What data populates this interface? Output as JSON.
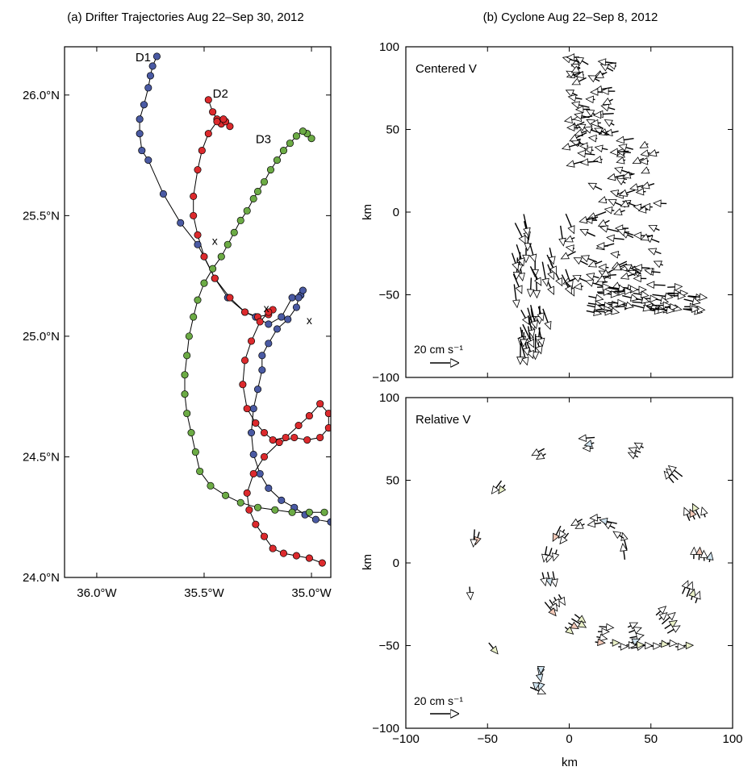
{
  "chart_data": [
    {
      "panel": "a",
      "type": "scatter",
      "title": "(a) Drifter Trajectories Aug 22–Sep 30, 2012",
      "xlabel": "",
      "ylabel": "",
      "xlim": [
        -36.15,
        -34.91
      ],
      "ylim": [
        24.0,
        26.2
      ],
      "xticks": [
        -36.0,
        -35.5,
        -35.0
      ],
      "xtick_labels": [
        "36.0°W",
        "35.5°W",
        "35.0°W"
      ],
      "yticks": [
        24.0,
        24.5,
        25.0,
        25.5,
        26.0
      ],
      "ytick_labels": [
        "24.0°N",
        "24.5°N",
        "25.0°N",
        "25.5°N",
        "26.0°N"
      ],
      "grid": false,
      "series": [
        {
          "name": "D1",
          "color": "#4a5aa3",
          "x": [
            -35.72,
            -35.74,
            -35.75,
            -35.76,
            -35.78,
            -35.8,
            -35.8,
            -35.79,
            -35.76,
            -35.69,
            -35.61,
            -35.53,
            -35.45,
            -35.39,
            -35.31,
            -35.26,
            -35.2,
            -35.14,
            -35.09,
            -35.05,
            -35.04,
            -35.06,
            -35.07,
            -35.11,
            -35.16,
            -35.2,
            -35.23,
            -35.23,
            -35.25,
            -35.27,
            -35.28,
            -35.27,
            -35.24,
            -35.2,
            -35.14,
            -35.08,
            -35.03,
            -34.98,
            -34.91
          ],
          "y": [
            26.16,
            26.12,
            26.08,
            26.03,
            25.96,
            25.9,
            25.84,
            25.77,
            25.73,
            25.59,
            25.47,
            25.38,
            25.24,
            25.16,
            25.1,
            25.08,
            25.05,
            25.08,
            25.16,
            25.17,
            25.19,
            25.16,
            25.12,
            25.07,
            25.03,
            24.97,
            24.92,
            24.86,
            24.78,
            24.7,
            24.6,
            24.51,
            24.43,
            24.37,
            24.32,
            24.29,
            24.26,
            24.24,
            24.23
          ]
        },
        {
          "name": "D2",
          "color": "#dc2a2d",
          "x": [
            -35.48,
            -35.46,
            -35.44,
            -35.42,
            -35.4,
            -35.38,
            -35.41,
            -35.44,
            -35.48,
            -35.51,
            -35.53,
            -35.55,
            -35.55,
            -35.53,
            -35.5,
            -35.45,
            -35.38,
            -35.31,
            -35.25,
            -35.2,
            -35.18,
            -35.2,
            -35.24,
            -35.28,
            -35.31,
            -35.32,
            -35.3,
            -35.26,
            -35.22,
            -35.18,
            -35.12,
            -35.06,
            -35.01,
            -34.96,
            -34.92,
            -34.92,
            -34.96,
            -35.02,
            -35.08,
            -35.15,
            -35.22,
            -35.27,
            -35.3,
            -35.29,
            -35.26,
            -35.22,
            -35.18,
            -35.13,
            -35.07,
            -35.01,
            -34.95
          ],
          "y": [
            25.98,
            25.93,
            25.9,
            25.88,
            25.89,
            25.87,
            25.9,
            25.89,
            25.84,
            25.77,
            25.69,
            25.58,
            25.5,
            25.42,
            25.33,
            25.24,
            25.16,
            25.1,
            25.08,
            25.09,
            25.11,
            25.1,
            25.06,
            24.98,
            24.9,
            24.8,
            24.7,
            24.64,
            24.6,
            24.57,
            24.58,
            24.63,
            24.67,
            24.72,
            24.68,
            24.62,
            24.58,
            24.57,
            24.58,
            24.56,
            24.5,
            24.43,
            24.35,
            24.28,
            24.22,
            24.17,
            24.12,
            24.1,
            24.09,
            24.08,
            24.06
          ]
        },
        {
          "name": "D3",
          "color": "#6cab45",
          "x": [
            -35.0,
            -35.02,
            -35.04,
            -35.07,
            -35.1,
            -35.13,
            -35.16,
            -35.19,
            -35.22,
            -35.25,
            -35.27,
            -35.3,
            -35.33,
            -35.36,
            -35.39,
            -35.42,
            -35.46,
            -35.5,
            -35.53,
            -35.55,
            -35.57,
            -35.58,
            -35.59,
            -35.59,
            -35.58,
            -35.56,
            -35.54,
            -35.52,
            -35.47,
            -35.4,
            -35.33,
            -35.25,
            -35.17,
            -35.09,
            -35.01,
            -34.94
          ],
          "y": [
            25.82,
            25.84,
            25.85,
            25.83,
            25.8,
            25.77,
            25.73,
            25.69,
            25.64,
            25.6,
            25.57,
            25.52,
            25.48,
            25.43,
            25.38,
            25.33,
            25.28,
            25.22,
            25.15,
            25.08,
            25.0,
            24.92,
            24.84,
            24.76,
            24.68,
            24.6,
            24.52,
            24.44,
            24.38,
            24.34,
            24.31,
            24.29,
            24.28,
            24.27,
            24.27,
            24.27
          ]
        }
      ],
      "annotations": [
        {
          "text": "D1",
          "x": -35.82,
          "y": 26.14
        },
        {
          "text": "D2",
          "x": -35.46,
          "y": 25.99
        },
        {
          "text": "D3",
          "x": -35.26,
          "y": 25.8
        },
        {
          "text": "x",
          "x": -35.45,
          "y": 25.38
        },
        {
          "text": "x",
          "x": -35.21,
          "y": 25.1
        },
        {
          "text": "x",
          "x": -35.01,
          "y": 25.05
        }
      ]
    },
    {
      "panel": "b-top",
      "type": "vector",
      "title": "(b) Cyclone Aug 22–Sep 8, 2012",
      "label": "Centered V",
      "xlabel": "",
      "ylabel": "km",
      "xlim": [
        -100,
        100
      ],
      "ylim": [
        -100,
        100
      ],
      "yticks": [
        -100,
        -50,
        0,
        50,
        100
      ],
      "scale_label": "20 cm s⁻¹",
      "note": "many arrows: dense westward near center, longer eastward arrows along the southern edge"
    },
    {
      "panel": "b-bottom",
      "type": "vector",
      "label": "Relative V",
      "xlabel": "km",
      "ylabel": "km",
      "xlim": [
        -100,
        100
      ],
      "ylim": [
        -100,
        100
      ],
      "xticks": [
        -100,
        -50,
        0,
        50,
        100
      ],
      "yticks": [
        -100,
        -50,
        0,
        50,
        100
      ],
      "scale_label": "20 cm s⁻¹",
      "note": "arrows follow spiral cyclonic tracks centered near (20, 0) km"
    }
  ]
}
